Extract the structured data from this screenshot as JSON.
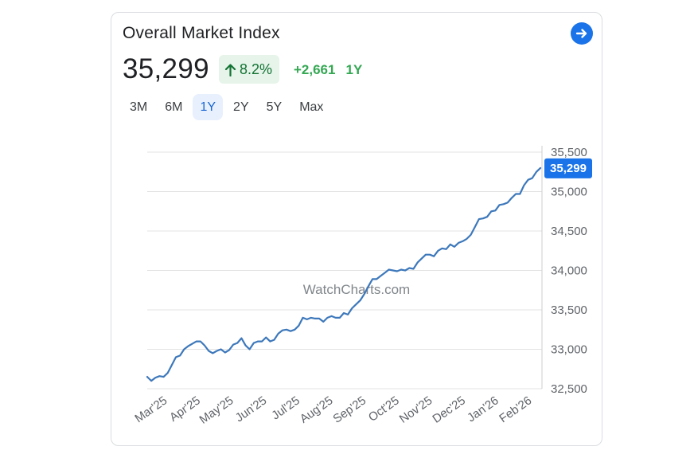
{
  "card": {
    "title": "Overall Market Index",
    "price": "35,299",
    "percent_change": "8.2%",
    "abs_change": "+2,661",
    "change_period": "1Y",
    "ranges": [
      {
        "label": "3M",
        "active": false
      },
      {
        "label": "6M",
        "active": false
      },
      {
        "label": "1Y",
        "active": true
      },
      {
        "label": "2Y",
        "active": false
      },
      {
        "label": "5Y",
        "active": false
      },
      {
        "label": "Max",
        "active": false
      }
    ],
    "watermark": "WatchCharts.com",
    "accent_color": "#1a73e8",
    "up_color": "#137333"
  },
  "chart_data": {
    "type": "line",
    "title": "",
    "xlabel": "",
    "ylabel": "",
    "ylim": [
      32500,
      35500
    ],
    "y_ticks": [
      32500,
      33000,
      33500,
      34000,
      34500,
      35000,
      35500
    ],
    "y_tick_labels": [
      "32,500",
      "33,000",
      "33,500",
      "34,000",
      "34,500",
      "35,000",
      "35,500"
    ],
    "x_ticks": [
      "Mar'25",
      "Apr'25",
      "May'25",
      "Jun'25",
      "Jul'25",
      "Aug'25",
      "Sep'25",
      "Oct'25",
      "Nov'25",
      "Dec'25",
      "Jan'26",
      "Feb'26"
    ],
    "current_value_label": "35,299",
    "grid": true,
    "line_color": "#3d78bb",
    "series": [
      {
        "values": [
          32650,
          32600,
          32640,
          32660,
          32650,
          32700,
          32800,
          32900,
          32920,
          33000,
          33040,
          33070,
          33100,
          33100,
          33050,
          32980,
          32950,
          32980,
          33000,
          32960,
          32990,
          33060,
          33080,
          33140,
          33050,
          33000,
          33080,
          33100,
          33100,
          33150,
          33100,
          33120,
          33200,
          33240,
          33250,
          33230,
          33250,
          33300,
          33400,
          33380,
          33400,
          33390,
          33390,
          33350,
          33400,
          33420,
          33400,
          33400,
          33460,
          33440,
          33520,
          33570,
          33620,
          33700,
          33800,
          33890,
          33890,
          33930,
          33970,
          34010,
          34000,
          33990,
          34010,
          34000,
          34030,
          34020,
          34100,
          34150,
          34200,
          34200,
          34180,
          34250,
          34280,
          34270,
          34330,
          34300,
          34350,
          34370,
          34400,
          34450,
          34550,
          34650,
          34660,
          34680,
          34750,
          34760,
          34830,
          34840,
          34860,
          34920,
          34970,
          34970,
          35080,
          35150,
          35170,
          35250,
          35299
        ]
      }
    ]
  }
}
